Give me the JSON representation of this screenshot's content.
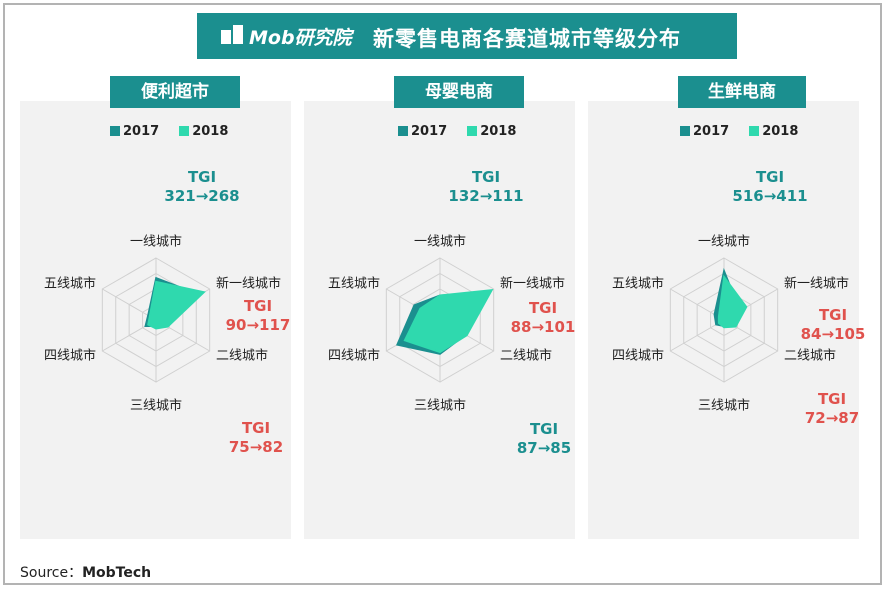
{
  "header": {
    "logo_text": "Mob研究院",
    "title": "新零售电商各赛道城市等级分布"
  },
  "legend": [
    {
      "label": "2017",
      "color": "#1b8f8f"
    },
    {
      "label": "2018",
      "color": "#2fd9ae"
    }
  ],
  "colors": {
    "accent": "#1b8f8f",
    "tgi_high": "#1b8f8f",
    "tgi_low": "#e0524d",
    "panel_bg": "#f2f2f2"
  },
  "chart_data": [
    {
      "type": "radar",
      "title": "便利超市",
      "axes": [
        "一线城市",
        "新一线城市",
        "二线城市",
        "三线城市",
        "四线城市",
        "五线城市"
      ],
      "series": [
        {
          "name": "2017",
          "values": [
            0.68,
            0.82,
            0.18,
            0.1,
            0.2,
            0.15
          ]
        },
        {
          "name": "2018",
          "values": [
            0.62,
            0.9,
            0.22,
            0.14,
            0.15,
            0.12
          ]
        }
      ],
      "tgi": [
        {
          "label": "TGI",
          "value": "321→268",
          "color": "teal"
        },
        {
          "label": "TGI",
          "value": "90→117",
          "color": "red"
        },
        {
          "label": "TGI",
          "value": "75→82",
          "color": "red"
        }
      ]
    },
    {
      "type": "radar",
      "title": "母婴电商",
      "axes": [
        "一线城市",
        "新一线城市",
        "二线城市",
        "三线城市",
        "四线城市",
        "五线城市"
      ],
      "series": [
        {
          "name": "2017",
          "values": [
            0.4,
            0.85,
            0.48,
            0.55,
            0.8,
            0.48
          ]
        },
        {
          "name": "2018",
          "values": [
            0.4,
            0.97,
            0.5,
            0.52,
            0.66,
            0.37
          ]
        }
      ],
      "tgi": [
        {
          "label": "TGI",
          "value": "132→111",
          "color": "teal"
        },
        {
          "label": "TGI",
          "value": "88→101",
          "color": "red"
        },
        {
          "label": "TGI",
          "value": "87→85",
          "color": "teal"
        }
      ]
    },
    {
      "type": "radar",
      "title": "生鲜电商",
      "axes": [
        "一线城市",
        "新一线城市",
        "二线城市",
        "三线城市",
        "四线城市",
        "五线城市"
      ],
      "series": [
        {
          "name": "2017",
          "values": [
            0.8,
            0.3,
            0.18,
            0.1,
            0.15,
            0.18
          ]
        },
        {
          "name": "2018",
          "values": [
            0.7,
            0.42,
            0.22,
            0.12,
            0.1,
            0.1
          ]
        }
      ],
      "tgi": [
        {
          "label": "TGI",
          "value": "516→411",
          "color": "teal"
        },
        {
          "label": "TGI",
          "value": "84→105",
          "color": "red"
        },
        {
          "label": "TGI",
          "value": "72→87",
          "color": "red"
        }
      ]
    }
  ],
  "source": {
    "label": "Source：",
    "value": "MobTech"
  }
}
